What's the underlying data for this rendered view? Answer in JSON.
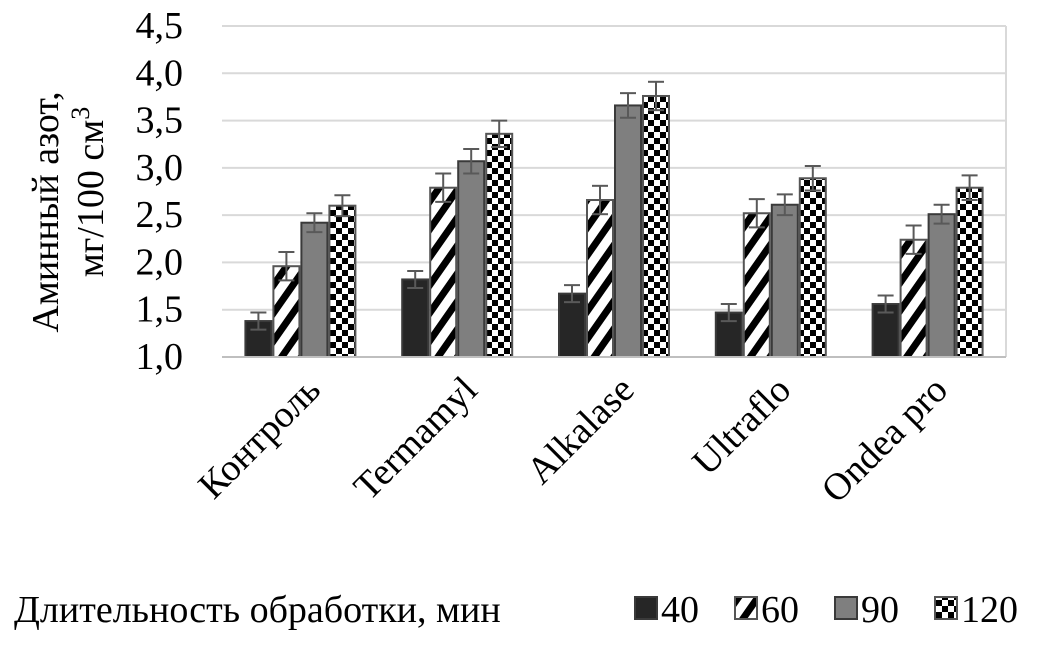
{
  "chart_data": {
    "type": "bar",
    "ylabel": "Аминный азот,",
    "ylabel_line2": "мг/100 см",
    "ylabel_sup": "3",
    "xlabel": "",
    "ylim": [
      1.0,
      4.5
    ],
    "yticks": [
      "1,0",
      "1,5",
      "2,0",
      "2,5",
      "3,0",
      "3,5",
      "4,0",
      "4,5"
    ],
    "grid": true,
    "categories": [
      "Контроль",
      "Termamyl",
      "Alkalase",
      "Ultraflo",
      "Ondea pro"
    ],
    "legend_title": "Длительность обработки, мин",
    "legend_position": "bottom",
    "series": [
      {
        "name": "40",
        "pattern": "solid-dark",
        "color": "#262626",
        "values": [
          1.38,
          1.82,
          1.67,
          1.47,
          1.56
        ],
        "errors": [
          0.09,
          0.09,
          0.09,
          0.09,
          0.09
        ]
      },
      {
        "name": "60",
        "pattern": "diagonal-stripes",
        "color": "#000000",
        "values": [
          1.96,
          2.79,
          2.66,
          2.52,
          2.24
        ],
        "errors": [
          0.15,
          0.15,
          0.15,
          0.15,
          0.15
        ]
      },
      {
        "name": "90",
        "pattern": "solid-gray",
        "color": "#7f7f7f",
        "values": [
          2.42,
          3.07,
          3.66,
          2.61,
          2.51
        ],
        "errors": [
          0.1,
          0.13,
          0.13,
          0.11,
          0.1
        ]
      },
      {
        "name": "120",
        "pattern": "checkerboard",
        "color": "#000000",
        "values": [
          2.6,
          3.36,
          3.76,
          2.89,
          2.79
        ],
        "errors": [
          0.11,
          0.14,
          0.15,
          0.13,
          0.13
        ]
      }
    ]
  }
}
